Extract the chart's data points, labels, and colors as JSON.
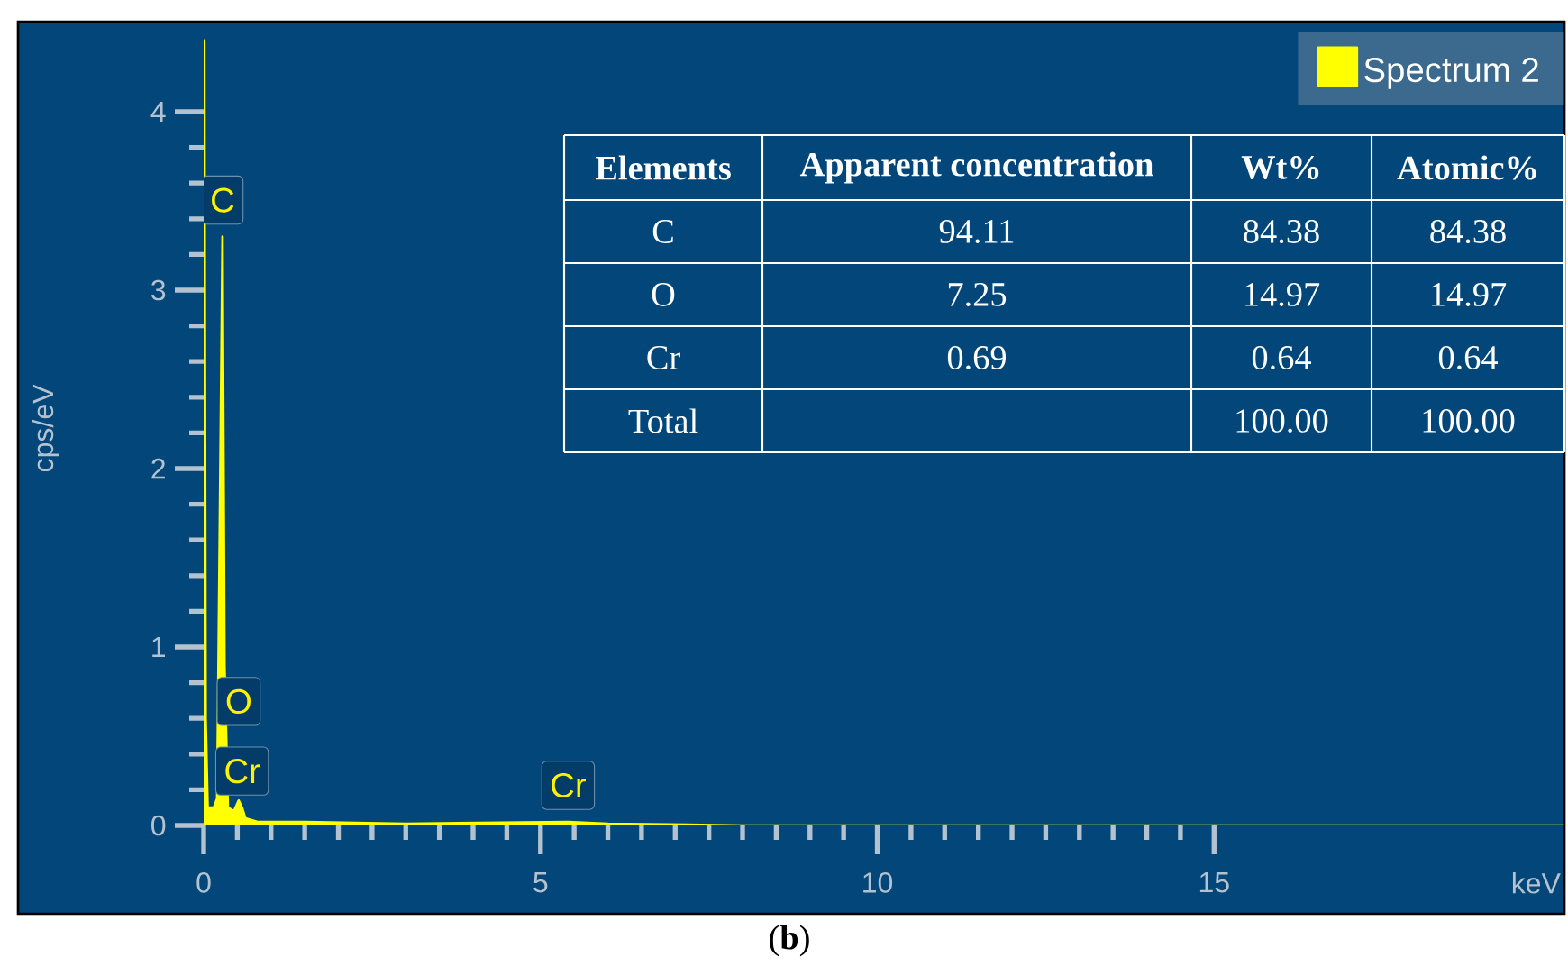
{
  "chart_data": [
    {
      "type": "area",
      "xlabel": "keV",
      "ylabel": "cps/eV",
      "x": [
        0,
        0.01,
        0.03,
        0.06,
        0.15,
        0.2,
        0.28,
        0.31,
        0.36,
        0.45,
        0.52,
        0.57,
        0.62,
        0.8,
        1.5,
        3,
        5.41,
        6,
        8,
        20.2
      ],
      "series": [
        {
          "name": "Spectrum 2",
          "color": "#ffff00",
          "values": [
            0,
            4.4,
            0.6,
            0.1,
            0.1,
            0.15,
            3.3,
            0.9,
            0.1,
            0.08,
            0.14,
            0.1,
            0.04,
            0.02,
            0.02,
            0.01,
            0.02,
            0.01,
            0,
            0
          ]
        }
      ],
      "xlim": [
        0,
        20.2
      ],
      "xticks": [
        0,
        5,
        10,
        15
      ],
      "ylim": [
        0,
        4.45
      ],
      "yticks": [
        0,
        1,
        2,
        3,
        4
      ],
      "legend": "top right",
      "grid": false,
      "annotations": [
        {
          "text": "C",
          "x": 0.28,
          "y": 3.3
        },
        {
          "text": "O",
          "x": 0.52,
          "y": 0.14
        },
        {
          "text": "Cr",
          "x": 0.57,
          "y": 0.1
        },
        {
          "text": "Cr",
          "x": 5.41,
          "y": 0.02
        },
        "(**b**)"
      ]
    },
    {
      "type": "other",
      "xlabel": "Elements",
      "categories": [
        "C",
        "O",
        "Cr",
        "Total"
      ],
      "series": [
        {
          "name": "Apparent concentration",
          "values": [
            94.11,
            7.25,
            0.69,
            null
          ],
          "value_labels": [
            "94.11",
            "7.25",
            "0.69",
            null
          ]
        },
        {
          "name": "Wt%",
          "values": [
            84.38,
            14.97,
            0.64,
            100
          ],
          "value_labels": [
            "84.38",
            "14.97",
            "0.64",
            "100.00"
          ]
        },
        {
          "name": "Atomic%",
          "values": [
            84.38,
            14.97,
            0.64,
            100
          ],
          "value_labels": [
            "84.38",
            "14.97",
            "0.64",
            "100.00"
          ]
        }
      ]
    }
  ]
}
